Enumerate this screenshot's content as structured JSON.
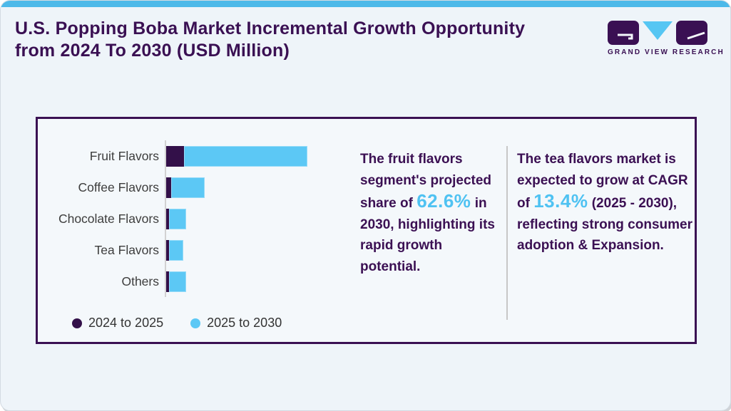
{
  "page": {
    "title": "U.S. Popping Boba Market Incremental Growth Opportunity from 2024 To 2030 (USD Million)",
    "logo_text": "GRAND VIEW RESEARCH"
  },
  "colors": {
    "accent_bar": "#4db9e9",
    "title_purple": "#3a1053",
    "series_dark": "#331049",
    "series_blue": "#5cc8f5",
    "highlight_blue": "#4fc2f2",
    "label_gray": "#3d3d3d",
    "panel_border": "#3a1053"
  },
  "chart_data": {
    "type": "bar",
    "orientation": "horizontal",
    "title": "U.S. Popping Boba Market Incremental Growth Opportunity from 2024 To 2030 (USD Million)",
    "categories": [
      "Fruit Flavors",
      "Coffee Flavors",
      "Chocolate Flavors",
      "Tea Flavors",
      "Others"
    ],
    "series": [
      {
        "name": "2024 to 2025",
        "color": "#331049",
        "values": [
          25,
          7,
          4,
          4,
          4
        ]
      },
      {
        "name": "2025 to 2030",
        "color": "#5cc8f5",
        "values": [
          173,
          47,
          24,
          20,
          24
        ]
      }
    ],
    "stacked": true,
    "value_units": "relative size (USD Million; no numeric axis shown)",
    "xlabel": "",
    "ylabel": "",
    "grid": false,
    "legend_position": "bottom-left"
  },
  "insights": [
    {
      "segments": [
        {
          "text": "The fruit flavors segment's projected share of "
        },
        {
          "text": "62.6%",
          "highlight": true
        },
        {
          "text": " in 2030, highlighting its rapid growth potential."
        }
      ]
    },
    {
      "segments": [
        {
          "text": "The tea flavors market is expected to grow at CAGR  of "
        },
        {
          "text": "13.4%",
          "highlight": true
        },
        {
          "text": " (2025 - 2030), reflecting strong consumer adoption & Expansion."
        }
      ]
    }
  ]
}
